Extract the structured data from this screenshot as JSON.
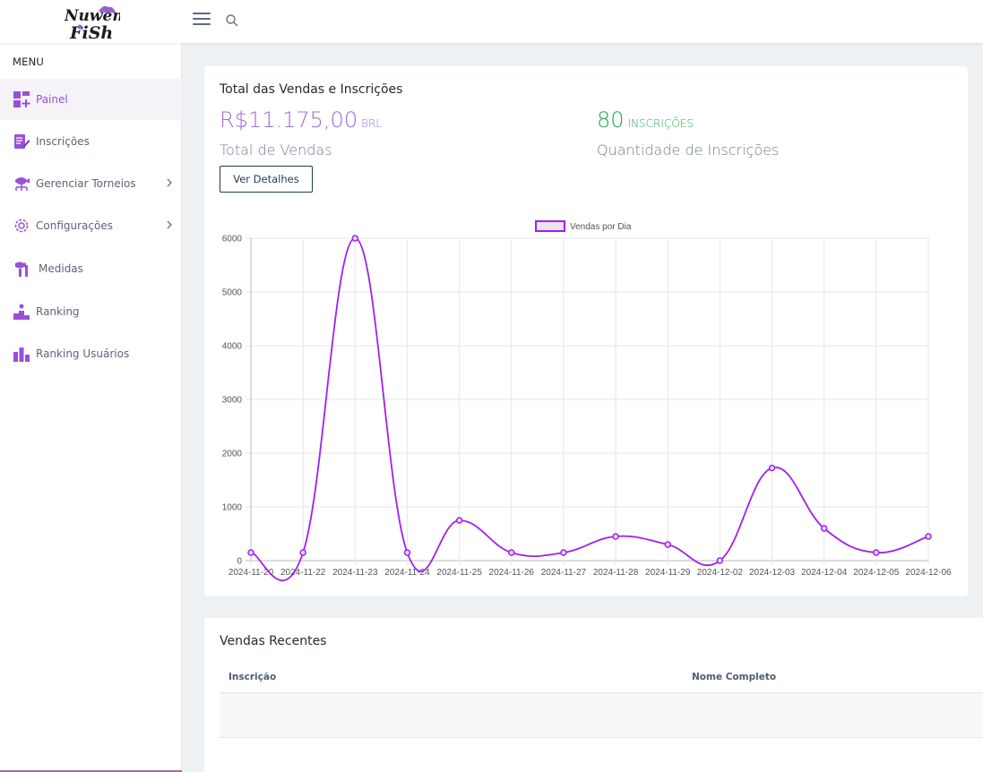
{
  "brand": {
    "logo_line1": "Nuwem",
    "logo_line2": "FiSh"
  },
  "sidebar": {
    "menu_title": "MENU",
    "items": [
      {
        "label": "Painel",
        "icon": "dashboard-icon",
        "active": true
      },
      {
        "label": "Inscrições",
        "icon": "edit-document-icon",
        "active": false
      },
      {
        "label": "Gerenciar Torneios",
        "icon": "tournament-icon",
        "active": false,
        "has_children": true
      },
      {
        "label": "Configurações",
        "icon": "gear-icon",
        "active": false,
        "has_children": true
      },
      {
        "label": "Medidas",
        "icon": "measure-fish-icon",
        "active": false
      },
      {
        "label": "Ranking",
        "icon": "podium-icon",
        "active": false
      },
      {
        "label": "Ranking Usuários",
        "icon": "bar-ranking-icon",
        "active": false
      }
    ]
  },
  "summary": {
    "title": "Total das Vendas e Inscrições",
    "sales_amount": "R$11.175,00",
    "sales_currency": "BRL",
    "sales_label": "Total de Vendas",
    "registrations_count": "80",
    "registrations_unit": "INSCRIÇÕES",
    "registrations_label": "Quantidade de Inscrições",
    "details_button": "Ver Detalhes"
  },
  "chart_data": {
    "type": "line",
    "legend": [
      "Vendas por Dia"
    ],
    "legend_position": "top-center",
    "grid": true,
    "series": [
      {
        "name": "Vendas por Dia",
        "color": "#a020f0",
        "values": [
          150,
          150,
          6000,
          150,
          750,
          150,
          150,
          450,
          300,
          0,
          1725,
          600,
          150,
          450
        ]
      }
    ],
    "categories": [
      "2024-11-20",
      "2024-11-22",
      "2024-11-23",
      "2024-11-24",
      "2024-11-25",
      "2024-11-26",
      "2024-11-27",
      "2024-11-28",
      "2024-11-29",
      "2024-12-02",
      "2024-12-03",
      "2024-12-04",
      "2024-12-05",
      "2024-12-06"
    ],
    "y_ticks": [
      "0",
      "1000",
      "2000",
      "3000",
      "4000",
      "5000",
      "6000"
    ],
    "ylim": [
      0,
      6000
    ]
  },
  "recent_sales": {
    "title": "Vendas Recentes",
    "columns": [
      "Inscrição",
      "Nome Completo"
    ]
  },
  "colors": {
    "accent": "#9b4fd8",
    "success": "#1eaa52",
    "line": "#a020f0"
  }
}
